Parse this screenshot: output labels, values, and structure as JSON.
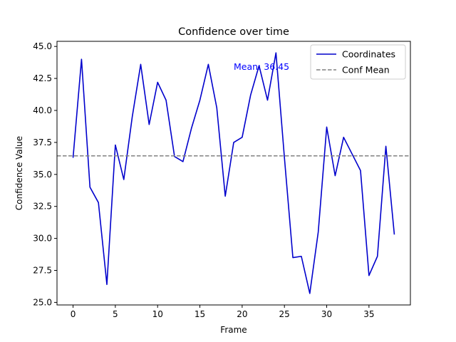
{
  "chart_data": {
    "type": "line",
    "title": "Confidence over time",
    "xlabel": "Frame",
    "ylabel": "Confidence Value",
    "xlim": [
      -1.9,
      39.9
    ],
    "ylim": [
      24.8,
      45.4
    ],
    "xticks": [
      0,
      5,
      10,
      15,
      20,
      25,
      30,
      35
    ],
    "yticks": [
      25.0,
      27.5,
      30.0,
      32.5,
      35.0,
      37.5,
      40.0,
      42.5,
      45.0
    ],
    "grid": false,
    "legend_position": "top-right",
    "series": [
      {
        "name": "Coordinates",
        "color": "#0000cc",
        "style": "solid",
        "x": [
          0,
          1,
          2,
          3,
          4,
          5,
          6,
          7,
          8,
          9,
          10,
          11,
          12,
          13,
          14,
          15,
          16,
          17,
          18,
          19,
          20,
          21,
          22,
          23,
          24,
          25,
          26,
          27,
          28,
          29,
          30,
          31,
          32,
          33,
          34,
          35,
          36,
          37,
          38
        ],
        "y": [
          36.3,
          44.0,
          34.0,
          32.8,
          26.4,
          37.3,
          34.6,
          39.5,
          43.6,
          38.9,
          42.2,
          40.8,
          36.4,
          36.0,
          38.6,
          40.8,
          43.6,
          40.2,
          33.3,
          37.5,
          37.9,
          41.2,
          43.5,
          40.8,
          44.5,
          36.3,
          28.5,
          28.6,
          25.7,
          30.5,
          38.7,
          34.9,
          37.9,
          36.6,
          35.3,
          27.1,
          28.6,
          37.2,
          30.3
        ]
      },
      {
        "name": "Conf Mean",
        "color": "#808080",
        "style": "dashed",
        "hline": 36.45
      }
    ],
    "annotation": {
      "text": "Mean: 36.45",
      "x": 19,
      "y": 43.4,
      "color": "#0000ff"
    }
  }
}
